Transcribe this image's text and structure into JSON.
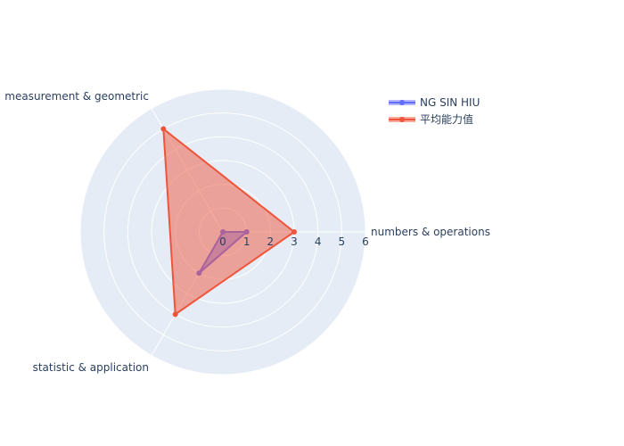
{
  "chart_data": {
    "type": "radar",
    "axes": [
      "numbers & operations",
      "measurement & geometric",
      "statistic & application"
    ],
    "radial_range": [
      0,
      6
    ],
    "radial_ticks": [
      0,
      1,
      2,
      3,
      4,
      5,
      6
    ],
    "series": [
      {
        "name": "NG SIN HIU",
        "values": [
          1,
          0,
          2
        ],
        "color": "#636efa",
        "fill": "rgba(99,110,250,0.5)"
      },
      {
        "name": "平均能力值",
        "values": [
          3,
          5,
          4
        ],
        "color": "#ef553b",
        "fill": "rgba(239,85,59,0.5)"
      }
    ],
    "legend_position": "top-right",
    "grid": true
  },
  "colors": {
    "polar_background": "#e5ecf6",
    "grid": "#ffffff",
    "text": "#2a3f5f"
  }
}
